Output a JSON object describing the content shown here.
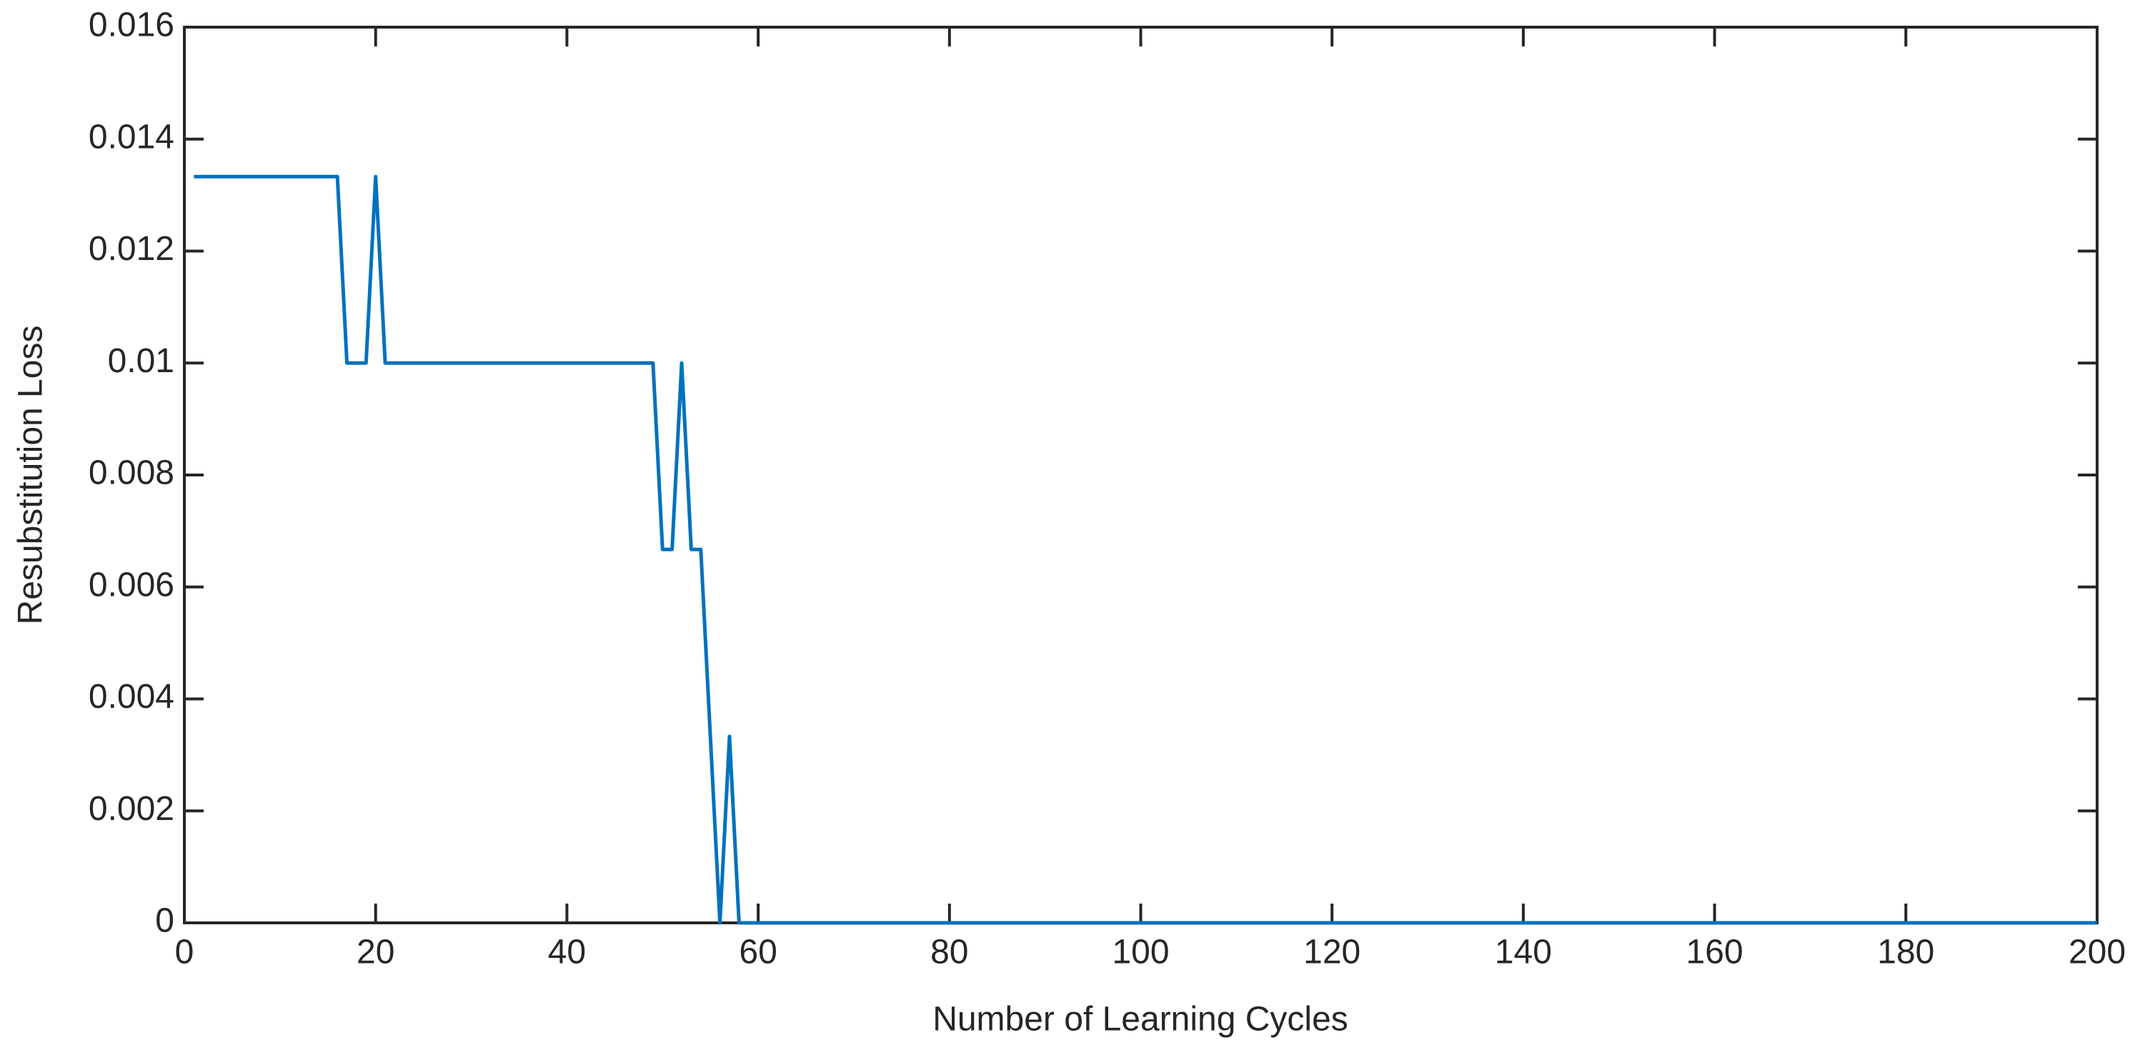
{
  "chart_data": {
    "type": "line",
    "xlabel": "Number of Learning Cycles",
    "ylabel": "Resubstitution Loss",
    "x": [
      1,
      16,
      17,
      19,
      20,
      21,
      49,
      50,
      51,
      52,
      53,
      54,
      55,
      56,
      57,
      58,
      200
    ],
    "series": [
      {
        "name": "Resubstitution Loss",
        "color": "#0072bd",
        "values": [
          0.01333,
          0.01333,
          0.01,
          0.01,
          0.01333,
          0.01,
          0.01,
          0.00667,
          0.00667,
          0.01,
          0.00667,
          0.00667,
          0.00333,
          0,
          0.00333,
          0,
          0
        ]
      }
    ],
    "xlim": [
      0,
      200
    ],
    "xticks": [
      0,
      20,
      40,
      60,
      80,
      100,
      120,
      140,
      160,
      180,
      200
    ],
    "ylim": [
      0,
      0.016
    ],
    "yticks": [
      0,
      0.002,
      0.004,
      0.006,
      0.008,
      0.01,
      0.012,
      0.014,
      0.016
    ],
    "grid": false
  }
}
